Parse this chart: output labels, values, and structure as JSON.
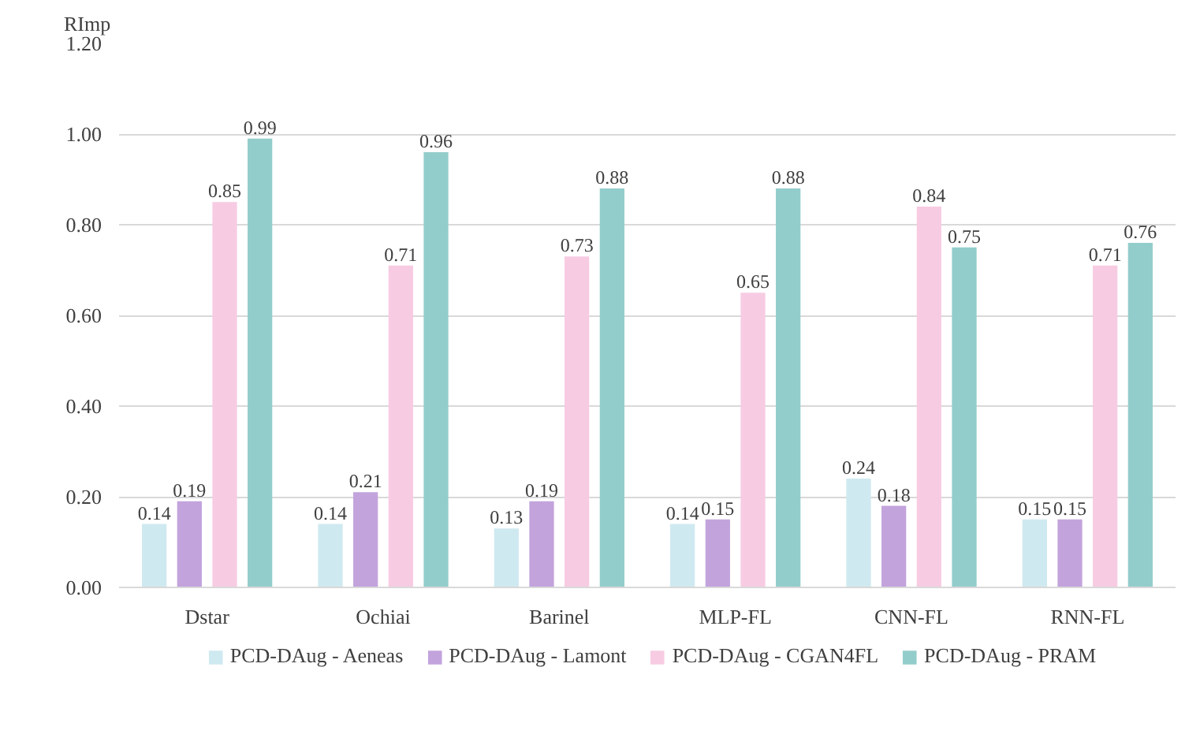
{
  "chart_data": {
    "type": "bar",
    "ylabel": "RImp",
    "categories": [
      "Dstar",
      "Ochiai",
      "Barinel",
      "MLP-FL",
      "CNN-FL",
      "RNN-FL"
    ],
    "series": [
      {
        "name": "PCD-DAug - Aeneas",
        "color": "#cfe9f0",
        "values": [
          0.14,
          0.14,
          0.13,
          0.14,
          0.24,
          0.15
        ]
      },
      {
        "name": "PCD-DAug - Lamont",
        "color": "#c3a3dc",
        "values": [
          0.19,
          0.21,
          0.19,
          0.15,
          0.18,
          0.15
        ]
      },
      {
        "name": "PCD-DAug - CGAN4FL",
        "color": "#f7cce3",
        "values": [
          0.85,
          0.71,
          0.73,
          0.65,
          0.84,
          0.71
        ]
      },
      {
        "name": "PCD-DAug - PRAM",
        "color": "#93cdcb",
        "values": [
          0.99,
          0.96,
          0.88,
          0.88,
          0.75,
          0.76
        ]
      }
    ],
    "ylim": [
      0,
      1.2
    ],
    "yticks": [
      {
        "value": 0,
        "label": "0.00"
      },
      {
        "value": 0.2,
        "label": "0.20"
      },
      {
        "value": 0.4,
        "label": "0.40"
      },
      {
        "value": 0.6,
        "label": "0.60"
      },
      {
        "value": 0.8,
        "label": "0.80"
      },
      {
        "value": 1.0,
        "label": "1.00"
      },
      {
        "value": 1.2,
        "label": "1.20"
      }
    ],
    "grid": "y",
    "legend": "bottom",
    "data_labels": true
  }
}
